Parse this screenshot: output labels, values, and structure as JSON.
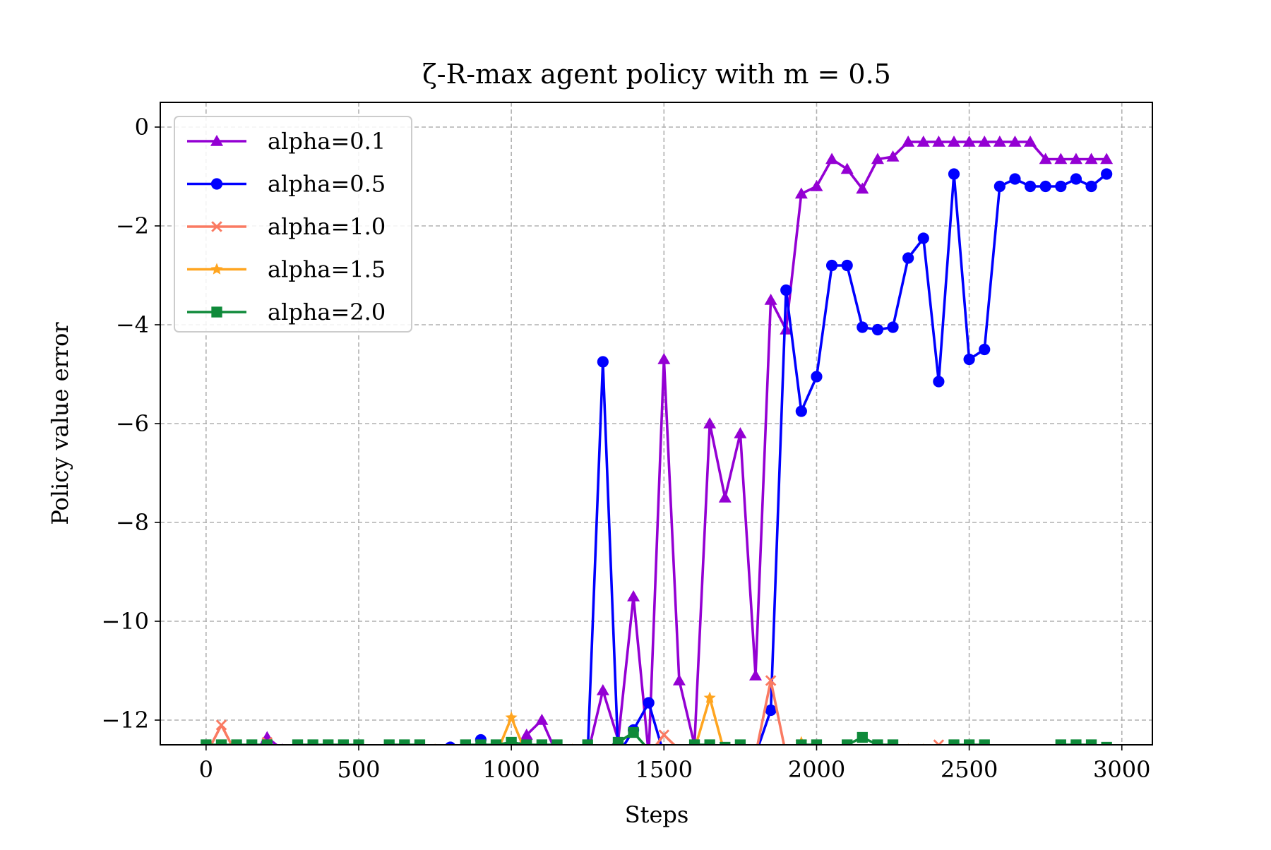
{
  "chart_data": {
    "type": "line",
    "title": "ζ-R-max agent policy with m = 0.5",
    "xlabel": "Steps",
    "ylabel": "Policy value error",
    "xlim": [
      -150,
      3100
    ],
    "ylim": [
      -12.5,
      0.5
    ],
    "xticks": [
      0,
      500,
      1000,
      1500,
      2000,
      2500,
      3000
    ],
    "xtick_labels": [
      "0",
      "500",
      "1000",
      "1500",
      "2000",
      "2500",
      "3000"
    ],
    "yticks": [
      0,
      -2,
      -4,
      -6,
      -8,
      -10,
      -12
    ],
    "ytick_labels": [
      "0",
      "−2",
      "−4",
      "−6",
      "−8",
      "−10",
      "−12"
    ],
    "grid": true,
    "legend_position": "top-left",
    "series": [
      {
        "name": "alpha=0.1",
        "color": "#9400d3",
        "marker": "triangle",
        "x": [
          0,
          50,
          100,
          150,
          200,
          250,
          300,
          350,
          400,
          450,
          500,
          550,
          600,
          650,
          700,
          750,
          800,
          850,
          900,
          950,
          1000,
          1050,
          1100,
          1150,
          1200,
          1250,
          1300,
          1350,
          1400,
          1450,
          1500,
          1550,
          1600,
          1650,
          1700,
          1750,
          1800,
          1850,
          1900,
          1950,
          2000,
          2050,
          2100,
          2150,
          2200,
          2250,
          2300,
          2350,
          2400,
          2450,
          2500,
          2550,
          2600,
          2650,
          2700,
          2750,
          2800,
          2850,
          2900,
          2950
        ],
        "y": [
          -12.7,
          -12.7,
          -12.7,
          -12.7,
          -12.35,
          -12.6,
          -12.7,
          -12.7,
          -12.7,
          -12.7,
          -12.7,
          -12.7,
          -12.7,
          -12.7,
          -12.7,
          -12.7,
          -12.7,
          -12.7,
          -12.7,
          -12.7,
          -12.7,
          -12.3,
          -12.0,
          -12.7,
          -12.7,
          -12.7,
          -11.4,
          -12.4,
          -9.5,
          -12.7,
          -4.7,
          -11.2,
          -12.5,
          -6.0,
          -7.5,
          -6.2,
          -11.1,
          -3.5,
          -4.1,
          -1.35,
          -1.2,
          -0.65,
          -0.85,
          -1.25,
          -0.65,
          -0.6,
          -0.3,
          -0.3,
          -0.3,
          -0.3,
          -0.3,
          -0.3,
          -0.3,
          -0.3,
          -0.3,
          -0.65,
          -0.65,
          -0.65,
          -0.65,
          -0.65
        ]
      },
      {
        "name": "alpha=0.5",
        "color": "#0000ff",
        "marker": "circle",
        "x": [
          0,
          50,
          100,
          150,
          200,
          250,
          300,
          350,
          400,
          450,
          500,
          550,
          600,
          650,
          700,
          750,
          800,
          850,
          900,
          950,
          1000,
          1050,
          1100,
          1150,
          1200,
          1250,
          1300,
          1350,
          1400,
          1450,
          1500,
          1550,
          1600,
          1650,
          1700,
          1750,
          1800,
          1850,
          1900,
          1950,
          2000,
          2050,
          2100,
          2150,
          2200,
          2250,
          2300,
          2350,
          2400,
          2450,
          2500,
          2550,
          2600,
          2650,
          2700,
          2750,
          2800,
          2850,
          2900,
          2950
        ],
        "y": [
          -12.7,
          -12.7,
          -12.7,
          -12.7,
          -12.7,
          -12.7,
          -12.7,
          -12.7,
          -12.7,
          -12.7,
          -12.7,
          -12.7,
          -12.7,
          -12.7,
          -12.7,
          -12.7,
          -12.55,
          -12.7,
          -12.4,
          -12.7,
          -12.7,
          -12.7,
          -12.7,
          -12.7,
          -12.7,
          -12.7,
          -4.75,
          -12.7,
          -12.2,
          -11.65,
          -12.7,
          -12.7,
          -12.7,
          -12.7,
          -12.7,
          -12.7,
          -12.7,
          -11.8,
          -3.3,
          -5.75,
          -5.05,
          -2.8,
          -2.8,
          -4.05,
          -4.1,
          -4.05,
          -2.65,
          -2.25,
          -5.15,
          -0.95,
          -4.7,
          -4.5,
          -1.2,
          -1.05,
          -1.2,
          -1.2,
          -1.2,
          -1.05,
          -1.2,
          -0.95
        ]
      },
      {
        "name": "alpha=1.0",
        "color": "#fa7a62",
        "marker": "x",
        "x": [
          0,
          50,
          100,
          150,
          200,
          250,
          300,
          350,
          400,
          450,
          500,
          550,
          600,
          650,
          700,
          750,
          800,
          850,
          900,
          950,
          1000,
          1050,
          1100,
          1150,
          1200,
          1250,
          1300,
          1350,
          1400,
          1450,
          1500,
          1550,
          1600,
          1650,
          1700,
          1750,
          1800,
          1850,
          1900,
          1950,
          2000,
          2050,
          2100,
          2150,
          2200,
          2250,
          2300,
          2350,
          2400,
          2450,
          2500,
          2550,
          2600,
          2650,
          2700,
          2750,
          2800,
          2850,
          2900,
          2950
        ],
        "y": [
          -12.7,
          -12.1,
          -12.7,
          -12.7,
          -12.45,
          -12.7,
          -12.7,
          -12.7,
          -12.7,
          -12.7,
          -12.7,
          -12.6,
          -12.7,
          -12.7,
          -12.7,
          -12.6,
          -12.7,
          -12.7,
          -12.6,
          -12.7,
          -12.7,
          -12.7,
          -12.7,
          -12.7,
          -12.7,
          -12.7,
          -12.7,
          -12.7,
          -12.7,
          -12.7,
          -12.3,
          -12.6,
          -12.7,
          -12.7,
          -12.7,
          -12.7,
          -12.7,
          -11.2,
          -12.7,
          -12.7,
          -12.7,
          -12.7,
          -12.7,
          -12.7,
          -12.7,
          -12.7,
          -12.7,
          -12.7,
          -12.5,
          -12.7,
          -12.7,
          -12.7,
          -12.7,
          -12.6,
          -12.6,
          -12.7,
          -12.7,
          -12.7,
          -12.7,
          -12.7
        ]
      },
      {
        "name": "alpha=1.5",
        "color": "#ffa520",
        "marker": "star",
        "x": [
          0,
          50,
          100,
          150,
          200,
          250,
          300,
          350,
          400,
          450,
          500,
          550,
          600,
          650,
          700,
          750,
          800,
          850,
          900,
          950,
          1000,
          1050,
          1100,
          1150,
          1200,
          1250,
          1300,
          1350,
          1400,
          1450,
          1500,
          1550,
          1600,
          1650,
          1700,
          1750,
          1800,
          1850,
          1900,
          1950,
          2000,
          2050,
          2100,
          2150,
          2200,
          2250,
          2300,
          2350,
          2400,
          2450,
          2500,
          2550,
          2600,
          2650,
          2700,
          2750,
          2800,
          2850,
          2900,
          2950
        ],
        "y": [
          -12.7,
          -12.7,
          -12.7,
          -12.7,
          -12.7,
          -12.7,
          -12.7,
          -12.7,
          -12.7,
          -12.7,
          -12.7,
          -12.7,
          -12.7,
          -12.7,
          -12.7,
          -12.6,
          -12.7,
          -12.7,
          -12.7,
          -12.7,
          -11.95,
          -12.7,
          -12.7,
          -12.7,
          -12.6,
          -12.7,
          -12.7,
          -12.7,
          -12.7,
          -12.7,
          -12.7,
          -12.7,
          -12.6,
          -11.55,
          -12.7,
          -12.7,
          -12.7,
          -12.7,
          -12.7,
          -12.45,
          -12.7,
          -12.7,
          -12.7,
          -12.7,
          -12.7,
          -12.7,
          -12.6,
          -12.6,
          -12.7,
          -12.7,
          -12.7,
          -12.7,
          -12.7,
          -12.7,
          -12.7,
          -12.7,
          -12.7,
          -12.7,
          -12.7,
          -12.7
        ]
      },
      {
        "name": "alpha=2.0",
        "color": "#0f8a3a",
        "marker": "square",
        "x": [
          0,
          50,
          100,
          150,
          200,
          250,
          300,
          350,
          400,
          450,
          500,
          550,
          600,
          650,
          700,
          750,
          800,
          850,
          900,
          950,
          1000,
          1050,
          1100,
          1150,
          1200,
          1250,
          1300,
          1350,
          1400,
          1450,
          1500,
          1550,
          1600,
          1650,
          1700,
          1750,
          1800,
          1850,
          1900,
          1950,
          2000,
          2050,
          2100,
          2150,
          2200,
          2250,
          2300,
          2350,
          2400,
          2450,
          2500,
          2550,
          2600,
          2650,
          2700,
          2750,
          2800,
          2850,
          2900,
          2950
        ],
        "y": [
          -12.5,
          -12.5,
          -12.5,
          -12.5,
          -12.5,
          -12.6,
          -12.5,
          -12.5,
          -12.5,
          -12.5,
          -12.5,
          -12.6,
          -12.5,
          -12.5,
          -12.5,
          -12.6,
          -12.6,
          -12.5,
          -12.5,
          -12.5,
          -12.45,
          -12.5,
          -12.5,
          -12.5,
          -12.6,
          -12.5,
          -12.6,
          -12.45,
          -12.25,
          -12.6,
          -12.6,
          -12.6,
          -12.5,
          -12.5,
          -12.55,
          -12.5,
          -12.6,
          -12.6,
          -12.6,
          -12.5,
          -12.5,
          -12.6,
          -12.5,
          -12.35,
          -12.5,
          -12.5,
          -12.6,
          -12.6,
          -12.6,
          -12.5,
          -12.5,
          -12.5,
          -12.6,
          -12.6,
          -12.6,
          -12.6,
          -12.5,
          -12.5,
          -12.5,
          -12.55
        ]
      }
    ]
  }
}
